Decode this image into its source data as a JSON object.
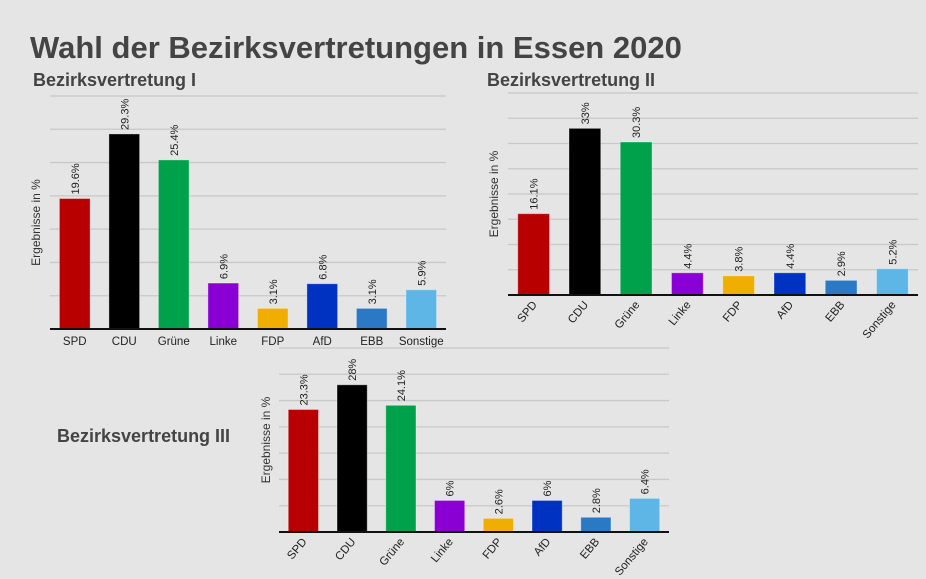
{
  "title": "Wahl der Bezirksvertretungen in Essen 2020",
  "colors": {
    "SPD": "#b80000",
    "CDU": "#000000",
    "Grüne": "#00a14b",
    "Linke": "#8a00d4",
    "FDP": "#f0ae00",
    "AfD": "#0032c2",
    "EBB": "#2b78c5",
    "Sonstige": "#5db6e6"
  },
  "chart_data": [
    {
      "type": "bar",
      "title": "Bezirksvertretung I",
      "ylabel": "Ergebnisse in %",
      "categories": [
        "SPD",
        "CDU",
        "Grüne",
        "Linke",
        "FDP",
        "AfD",
        "EBB",
        "Sonstige"
      ],
      "values": [
        19.6,
        29.3,
        25.4,
        6.9,
        3.1,
        6.8,
        3.1,
        5.9
      ],
      "labels": [
        "19.6%",
        "29.3%",
        "25.4%",
        "6.9%",
        "3.1%",
        "6.8%",
        "3.1%",
        "5.9%"
      ],
      "ylim": [
        0,
        35
      ],
      "grid_step": 5
    },
    {
      "type": "bar",
      "title": "Bezirksvertretung II",
      "ylabel": "Ergebnisse in %",
      "categories": [
        "SPD",
        "CDU",
        "Grüne",
        "Linke",
        "FDP",
        "AfD",
        "EBB",
        "Sonstige"
      ],
      "values": [
        16.1,
        33,
        30.3,
        4.4,
        3.8,
        4.4,
        2.9,
        5.2
      ],
      "labels": [
        "16.1%",
        "33%",
        "30.3%",
        "4.4%",
        "3.8%",
        "4.4%",
        "2.9%",
        "5.2%"
      ],
      "ylim": [
        0,
        40
      ],
      "grid_step": 5
    },
    {
      "type": "bar",
      "title": "Bezirksvertretung III",
      "ylabel": "Ergebnisse in %",
      "categories": [
        "SPD",
        "CDU",
        "Grüne",
        "Linke",
        "FDP",
        "AfD",
        "EBB",
        "Sonstige"
      ],
      "values": [
        23.3,
        28,
        24.1,
        6,
        2.6,
        6,
        2.8,
        6.4
      ],
      "labels": [
        "23.3%",
        "28%",
        "24.1%",
        "6%",
        "2.6%",
        "6%",
        "2.8%",
        "6.4%"
      ],
      "ylim": [
        0,
        35
      ],
      "grid_step": 5
    }
  ]
}
